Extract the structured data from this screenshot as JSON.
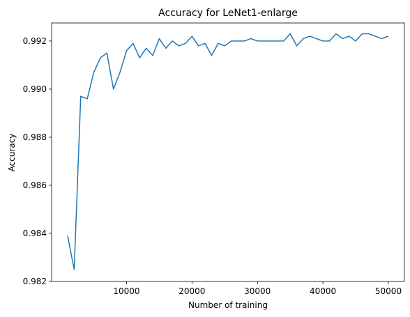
{
  "chart_data": {
    "type": "line",
    "title": "Accuracy for LeNet1-enlarge",
    "xlabel": "Number of training",
    "ylabel": "Accuracy",
    "xlim": [
      -1450,
      52450
    ],
    "ylim": [
      0.982,
      0.99275
    ],
    "xticks": [
      10000,
      20000,
      30000,
      40000,
      50000
    ],
    "xtick_labels": [
      "10000",
      "20000",
      "30000",
      "40000",
      "50000"
    ],
    "yticks": [
      0.982,
      0.984,
      0.986,
      0.988,
      0.99,
      0.992
    ],
    "ytick_labels": [
      "0.982",
      "0.984",
      "0.986",
      "0.988",
      "0.990",
      "0.992"
    ],
    "grid": false,
    "line_color": "#1f77b4",
    "series": [
      {
        "x": [
          1000,
          2000,
          3000,
          4000,
          5000,
          6000,
          7000,
          8000,
          9000,
          10000,
          11000,
          12000,
          13000,
          14000,
          15000,
          16000,
          17000,
          18000,
          19000,
          20000,
          21000,
          22000,
          23000,
          24000,
          25000,
          26000,
          27000,
          28000,
          29000,
          30000,
          31000,
          32000,
          33000,
          34000,
          35000,
          36000,
          37000,
          38000,
          39000,
          40000,
          41000,
          42000,
          43000,
          44000,
          45000,
          46000,
          47000,
          48000,
          49000,
          50000
        ],
        "values": [
          0.9839,
          0.9825,
          0.9897,
          0.9896,
          0.9907,
          0.9913,
          0.9915,
          0.99,
          0.9907,
          0.9916,
          0.9919,
          0.9913,
          0.9917,
          0.9914,
          0.9921,
          0.9917,
          0.992,
          0.9918,
          0.9919,
          0.9922,
          0.9918,
          0.9919,
          0.9914,
          0.9919,
          0.9918,
          0.992,
          0.992,
          0.992,
          0.9921,
          0.992,
          0.992,
          0.992,
          0.992,
          0.992,
          0.9923,
          0.9918,
          0.9921,
          0.9922,
          0.9921,
          0.992,
          0.992,
          0.9923,
          0.9921,
          0.9922,
          0.992,
          0.9923,
          0.9923,
          0.9922,
          0.9921,
          0.9922
        ]
      }
    ]
  }
}
